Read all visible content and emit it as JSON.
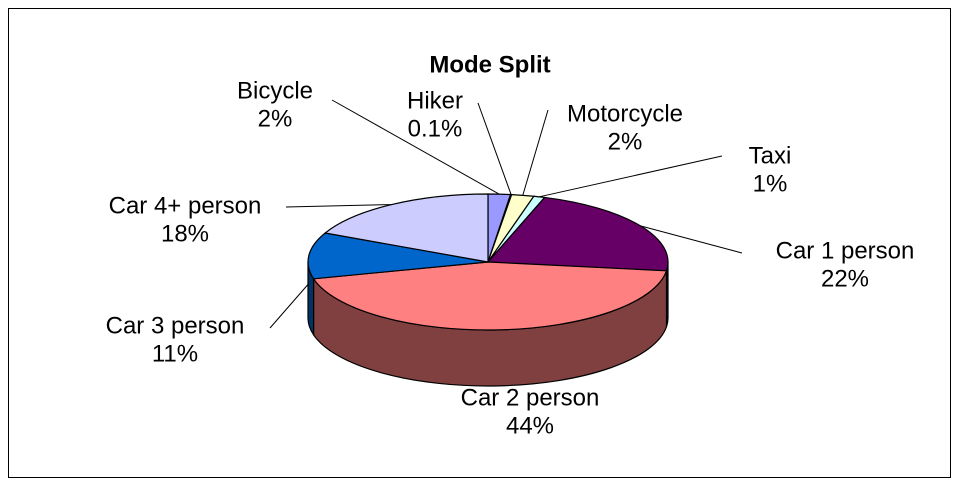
{
  "chart_data": {
    "type": "pie",
    "title": "Mode Split",
    "categories": [
      "Bicycle",
      "Hiker",
      "Motorcycle",
      "Taxi",
      "Car 1 person",
      "Car 2 person",
      "Car 3 person",
      "Car 4+ person"
    ],
    "values": [
      2,
      0.1,
      2,
      1,
      22,
      44,
      11,
      18
    ],
    "value_labels": [
      "2%",
      "0.1%",
      "2%",
      "1%",
      "22%",
      "44%",
      "11%",
      "18%"
    ],
    "colors": [
      "#9999ff",
      "#993366",
      "#ffffcc",
      "#ccffff",
      "#660066",
      "#ff8080",
      "#0066cc",
      "#ccccff"
    ]
  }
}
